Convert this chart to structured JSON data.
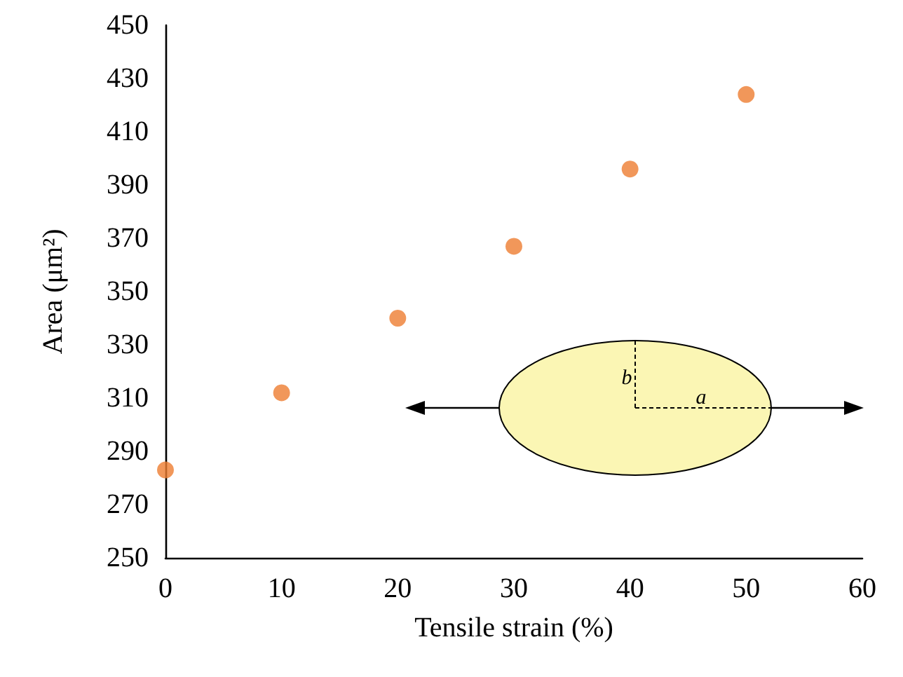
{
  "chart_data": {
    "type": "scatter",
    "xlabel": "Tensile strain (%)",
    "ylabel": "Area (μm²)",
    "x": [
      0,
      10,
      20,
      30,
      40,
      50
    ],
    "series": [
      {
        "color": "#ed7d31",
        "values": [
          283,
          312,
          340,
          367,
          396,
          424
        ]
      }
    ],
    "xlim": [
      0,
      60
    ],
    "xticks": [
      0,
      10,
      20,
      30,
      40,
      50,
      60
    ],
    "ylim": [
      250,
      450
    ],
    "yticks": [
      250,
      270,
      290,
      310,
      330,
      350,
      370,
      390,
      410,
      430,
      450
    ],
    "grid": false,
    "marker": "circle",
    "annotations": [
      "b",
      "a"
    ]
  }
}
